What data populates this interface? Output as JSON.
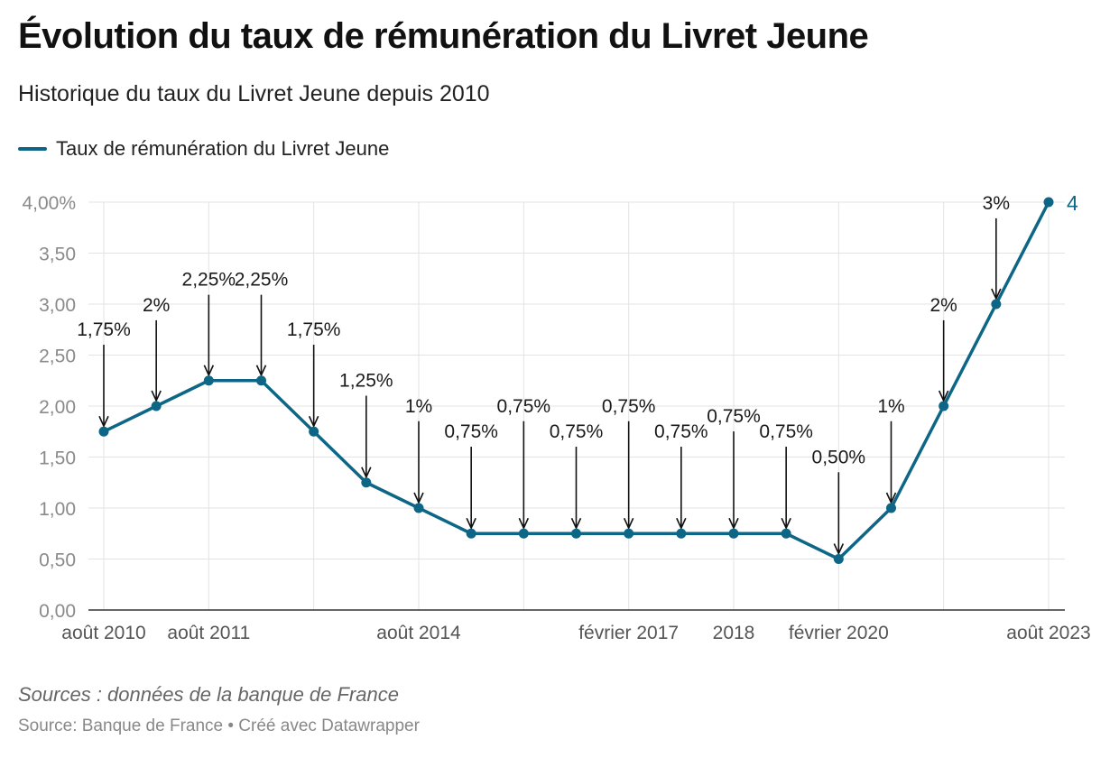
{
  "header": {
    "title": "Évolution du taux de rémunération du Livret Jeune",
    "subtitle": "Historique du taux du Livret Jeune depuis 2010"
  },
  "colors": {
    "series": "#0d6685",
    "grid": "#e3e3e3",
    "axis_text": "#8a8a8a",
    "label_text": "#1a1a1a"
  },
  "footer": {
    "notes": "Sources : données de la banque de France",
    "source": "Source: Banque de France • Créé avec Datawrapper"
  },
  "chart_data": {
    "type": "line",
    "title": "Évolution du taux de rémunération du Livret Jeune",
    "subtitle": "Historique du taux du Livret Jeune depuis 2010",
    "xlabel": "",
    "ylabel": "",
    "ylim": [
      0,
      4
    ],
    "yticks": [
      0,
      0.5,
      1,
      1.5,
      2,
      2.5,
      3,
      3.5,
      4
    ],
    "ytick_labels": [
      "0,00",
      "0,50",
      "1,00",
      "1,50",
      "2,00",
      "2,50",
      "3,00",
      "3,50",
      "4,00%"
    ],
    "x_index": [
      0,
      1,
      2,
      3,
      4,
      5,
      6,
      7,
      8,
      9,
      10,
      11,
      12,
      13,
      14,
      15,
      16,
      17,
      18
    ],
    "x_tick_labels": [
      {
        "i": 0,
        "label": "août 2010"
      },
      {
        "i": 2,
        "label": "août 2011"
      },
      {
        "i": 6,
        "label": "août 2014"
      },
      {
        "i": 10,
        "label": "février 2017"
      },
      {
        "i": 12,
        "label": "2018"
      },
      {
        "i": 14,
        "label": "février 2020"
      },
      {
        "i": 18,
        "label": "août 2023"
      }
    ],
    "x_gridlines_at": [
      0,
      2,
      4,
      6,
      8,
      10,
      12,
      14,
      16,
      18
    ],
    "grid": true,
    "legend": "top-left",
    "series": [
      {
        "name": "Taux de rémunération du Livret Jeune",
        "values": [
          1.75,
          2,
          2.25,
          2.25,
          1.75,
          1.25,
          1,
          0.75,
          0.75,
          0.75,
          0.75,
          0.75,
          0.75,
          0.75,
          0.5,
          1,
          2,
          3,
          4
        ],
        "end_label": "4"
      }
    ],
    "annotations": [
      {
        "i": 0,
        "text": "1,75%",
        "y_text": 2.69
      },
      {
        "i": 1,
        "text": "2%",
        "y_text": 2.93
      },
      {
        "i": 2,
        "text": "2,25%",
        "y_text": 3.18
      },
      {
        "i": 3,
        "text": "2,25%",
        "y_text": 3.18
      },
      {
        "i": 4,
        "text": "1,75%",
        "y_text": 2.69
      },
      {
        "i": 5,
        "text": "1,25%",
        "y_text": 2.19
      },
      {
        "i": 6,
        "text": "1%",
        "y_text": 1.94
      },
      {
        "i": 7,
        "text": "0,75%",
        "y_text": 1.69
      },
      {
        "i": 8,
        "text": "0,75%",
        "y_text": 1.94
      },
      {
        "i": 9,
        "text": "0,75%",
        "y_text": 1.69
      },
      {
        "i": 10,
        "text": "0,75%",
        "y_text": 1.94
      },
      {
        "i": 11,
        "text": "0,75%",
        "y_text": 1.69
      },
      {
        "i": 12,
        "text": "0,75%",
        "y_text": 1.84
      },
      {
        "i": 13,
        "text": "0,75%",
        "y_text": 1.69
      },
      {
        "i": 14,
        "text": "0,50%",
        "y_text": 1.44
      },
      {
        "i": 15,
        "text": "1%",
        "y_text": 1.94
      },
      {
        "i": 16,
        "text": "2%",
        "y_text": 2.93
      },
      {
        "i": 17,
        "text": "3%",
        "y_text": 3.93
      }
    ]
  }
}
